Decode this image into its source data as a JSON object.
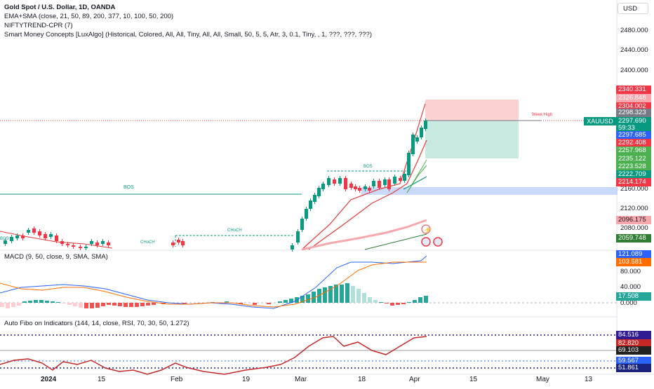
{
  "legend": {
    "title": "Gold Spot / U.S. Dollar, 1D, OANDA",
    "line1": "EMA+SMA (close, 21, 50, 89, 200, 377, 10, 100, 50, 200)",
    "line2": "NIFTYTREND-CPR  (7)",
    "line3": "Smart Money Concepts [LuxAlgo] (Historical, Colored, All, All, Tiny, All, All, Small, 50, 5, 5, Atr, 3, 0.1, Tiny, , 1, ???, ???, ???)"
  },
  "currency": "USD",
  "symbol_tag": "XAUUSD",
  "price_axis": [
    "2480.000",
    "2440.000",
    "2400.000",
    "2160.000",
    "2120.000",
    "2080.000"
  ],
  "price_tags": [
    {
      "value": "2340.331",
      "color": "#f23645"
    },
    {
      "value": "2326.848",
      "color": "#f7a8ad"
    },
    {
      "value": "2304.002",
      "color": "#f23645"
    },
    {
      "value": "2298.323",
      "color": "#787b86"
    },
    {
      "value": "2297.690",
      "color": "#089981"
    },
    {
      "value": "59:33",
      "color": "#089981"
    },
    {
      "value": "2297.685",
      "color": "#2962ff"
    },
    {
      "value": "2292.408",
      "color": "#f23645"
    },
    {
      "value": "2257.968",
      "color": "#4caf50"
    },
    {
      "value": "2235.122",
      "color": "#4caf50"
    },
    {
      "value": "2223.528",
      "color": "#4caf50"
    },
    {
      "value": "2222.709",
      "color": "#089981"
    },
    {
      "value": "2214.174",
      "color": "#f23645"
    },
    {
      "value": "2096.175",
      "color": "#f7a8ad"
    },
    {
      "value": "2059.748",
      "color": "#2e7d32"
    }
  ],
  "chart_labels": {
    "bos_left": "BOS",
    "bos_mid": "BOS",
    "choch_1": "CHoCH",
    "choch_2": "CHoCH",
    "bos_far_left": "BOS",
    "week_high": "Week High"
  },
  "macd": {
    "title": "MACD (9, 50, close, 9, SMA, SMA)",
    "axis": [
      "80.000",
      "40.000",
      "0.000"
    ],
    "tags": [
      {
        "value": "121.089",
        "color": "#2962ff"
      },
      {
        "value": "103.581",
        "color": "#ff6d00"
      },
      {
        "value": "17.508",
        "color": "#26a69a"
      }
    ]
  },
  "fibo": {
    "title": "Auto Fibo on Indicators (144, 14, close, RSI, 70, 30, 50, 1.272)",
    "tags": [
      {
        "value": "84.516",
        "color": "#311b92"
      },
      {
        "value": "82.820",
        "color": "#c62828"
      },
      {
        "value": "69.103",
        "color": "#212121"
      },
      {
        "value": "59.567",
        "color": "#2962ff"
      },
      {
        "value": "51.861",
        "color": "#1a237e"
      }
    ]
  },
  "time_axis": [
    {
      "label": "2024",
      "bold": true
    },
    {
      "label": "15",
      "bold": false
    },
    {
      "label": "Feb",
      "bold": false
    },
    {
      "label": "19",
      "bold": false
    },
    {
      "label": "Mar",
      "bold": false
    },
    {
      "label": "18",
      "bold": false
    },
    {
      "label": "Apr",
      "bold": false
    },
    {
      "label": "15",
      "bold": false
    },
    {
      "label": "May",
      "bold": false
    },
    {
      "label": "13",
      "bold": false
    }
  ]
}
